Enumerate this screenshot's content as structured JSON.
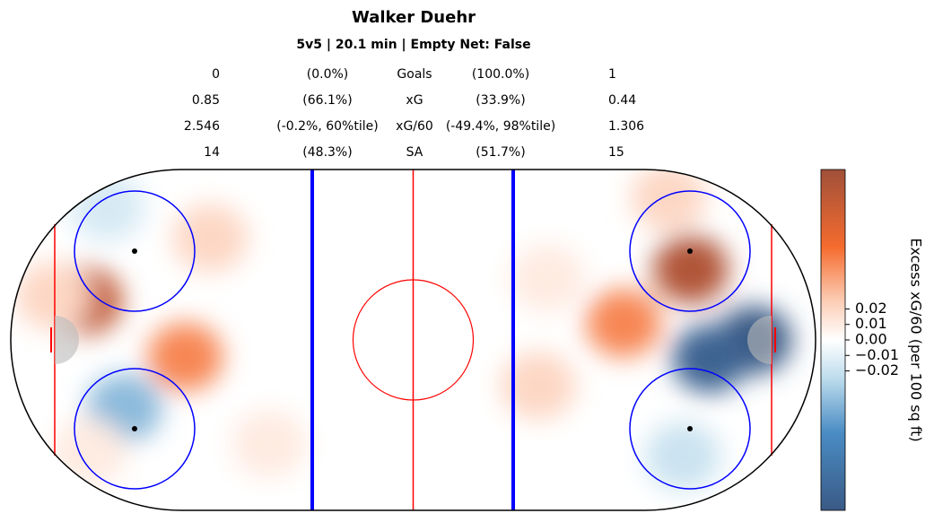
{
  "chart_data": {
    "type": "heatmap",
    "title": "Walker Duehr",
    "subtitle": "5v5 | 20.1 min | Empty Net: False",
    "stats": {
      "labels": [
        "Goals",
        "xG",
        "xG/60",
        "SA"
      ],
      "left_values": [
        "0",
        "0.85",
        "2.546",
        "14"
      ],
      "left_pct": [
        "(0.0%)",
        "(66.1%)",
        "(-0.2%, 60%tile)",
        "(48.3%)"
      ],
      "right_pct": [
        "(100.0%)",
        "(33.9%)",
        "(-49.4%, 98%tile)",
        "(51.7%)"
      ],
      "right_values": [
        "1",
        "0.44",
        "1.306",
        "15"
      ]
    },
    "xlim": [
      -100,
      100
    ],
    "ylim": [
      -42.5,
      42.5
    ],
    "colorbar_label": "Excess xG/60 (per 100 sq ft)",
    "clim": [
      -0.11,
      0.11
    ],
    "cticks": [
      {
        "value": -0.02,
        "label": "−0.02"
      },
      {
        "value": -0.01,
        "label": "−0.01"
      },
      {
        "value": 0,
        "label": "0.00"
      },
      {
        "value": 0.01,
        "label": "0.01"
      },
      {
        "value": 0.02,
        "label": "0.02"
      }
    ],
    "hotspots": [
      {
        "x": -81.6,
        "y": 9.8,
        "value": 0.09
      },
      {
        "x": -56.6,
        "y": -4.2,
        "value": 0.05
      },
      {
        "x": -50.4,
        "y": 25.4,
        "value": 0.02
      },
      {
        "x": -71.8,
        "y": -17,
        "value": -0.04
      },
      {
        "x": -76,
        "y": 33,
        "value": -0.015
      },
      {
        "x": -35.8,
        "y": -25.9,
        "value": 0.01
      },
      {
        "x": -80.5,
        "y": -28,
        "value": 0.01
      },
      {
        "x": -89.4,
        "y": 11,
        "value": 0.02
      },
      {
        "x": 69,
        "y": 17.6,
        "value": 0.1
      },
      {
        "x": 84.7,
        "y": 0,
        "value": -0.11
      },
      {
        "x": 73.7,
        "y": -4.7,
        "value": -0.1
      },
      {
        "x": 52.3,
        "y": 4.2,
        "value": 0.05
      },
      {
        "x": 63.5,
        "y": 35.5,
        "value": 0.02
      },
      {
        "x": 31.1,
        "y": -11.4,
        "value": 0.02
      },
      {
        "x": 33.4,
        "y": 15.4,
        "value": 0.01
      },
      {
        "x": 67,
        "y": -29,
        "value": -0.02
      }
    ]
  }
}
